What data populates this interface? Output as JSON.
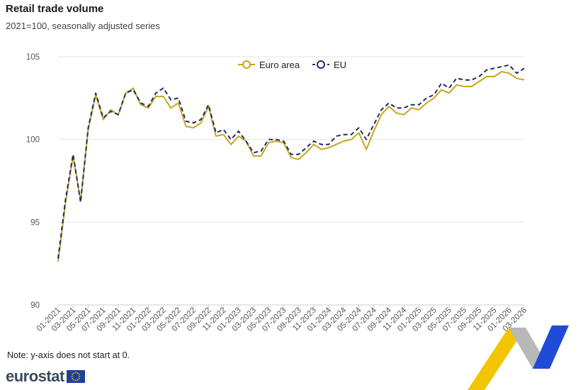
{
  "title": "Retail trade volume",
  "subtitle": "2021=100, seasonally adjusted series",
  "note": "Note: y-axis does not start at 0.",
  "logo_text": "eurostat",
  "colors": {
    "euro_area": "#c8a51e",
    "eu": "#1b2f6b",
    "grid": "#e6e6e6",
    "ribbon_yellow": "#f2c500",
    "ribbon_blue": "#1f4bd8",
    "ribbon_grey": "#b8b8b8"
  },
  "chart_data": {
    "type": "line",
    "ylim": [
      90,
      105
    ],
    "yticks": [
      90,
      95,
      100,
      105
    ],
    "grid": true,
    "legend_position": "top-center",
    "x": [
      "01-2021",
      "02-2021",
      "03-2021",
      "04-2021",
      "05-2021",
      "06-2021",
      "07-2021",
      "08-2021",
      "09-2021",
      "10-2021",
      "11-2021",
      "12-2021",
      "01-2022",
      "02-2022",
      "03-2022",
      "04-2022",
      "05-2022",
      "06-2022",
      "07-2022",
      "08-2022",
      "09-2022",
      "10-2022",
      "11-2022",
      "12-2022",
      "01-2023",
      "02-2023",
      "03-2023",
      "04-2023",
      "05-2023",
      "06-2023",
      "07-2023",
      "08-2023",
      "09-2023",
      "10-2023",
      "11-2023",
      "12-2023",
      "01-2024",
      "02-2024",
      "03-2024",
      "04-2024",
      "05-2024",
      "06-2024",
      "07-2024",
      "08-2024",
      "09-2024",
      "10-2024",
      "11-2024",
      "12-2024",
      "01-2025",
      "02-2025",
      "03-2025",
      "04-2025",
      "05-2025",
      "06-2025",
      "07-2025",
      "08-2025",
      "09-2025",
      "10-2025",
      "11-2025",
      "12-2025",
      "01-2026",
      "02-2026",
      "03-2026"
    ],
    "xtick_labels": [
      "01-2021",
      "03-2021",
      "05-2021",
      "07-2021",
      "09-2021",
      "11-2021",
      "01-2022",
      "03-2022",
      "05-2022",
      "07-2022",
      "09-2022",
      "11-2022",
      "01-2023",
      "03-2023",
      "05-2023",
      "07-2023",
      "09-2023",
      "11-2023",
      "01-2024",
      "03-2024",
      "05-2024",
      "07-2024",
      "09-2024",
      "11-2024",
      "01-2025",
      "03-2025",
      "05-2025",
      "07-2025",
      "09-2025",
      "11-2025",
      "01-2026",
      "03-2026"
    ],
    "series": [
      {
        "name": "Euro area",
        "values": [
          92.6,
          96.2,
          99.0,
          96.3,
          100.6,
          102.7,
          101.2,
          101.8,
          101.5,
          102.8,
          103.1,
          102.1,
          101.9,
          102.6,
          102.6,
          101.9,
          102.2,
          100.8,
          100.7,
          101.0,
          102.0,
          100.2,
          100.3,
          99.7,
          100.2,
          99.9,
          99.0,
          99.0,
          99.8,
          99.9,
          99.8,
          98.9,
          98.8,
          99.2,
          99.7,
          99.4,
          99.5,
          99.7,
          99.9,
          100.0,
          100.4,
          99.4,
          100.5,
          101.5,
          102.0,
          101.6,
          101.5,
          101.9,
          101.8,
          102.2,
          102.5,
          103.0,
          102.8,
          103.3,
          103.2,
          103.2,
          103.5,
          103.8,
          103.8,
          104.1,
          104.0,
          103.7,
          103.6
        ]
      },
      {
        "name": "EU",
        "values": [
          92.8,
          96.4,
          99.1,
          96.2,
          100.7,
          102.8,
          101.3,
          101.7,
          101.5,
          102.8,
          103.0,
          102.2,
          102.0,
          102.8,
          103.1,
          102.4,
          102.5,
          101.1,
          101.0,
          101.2,
          102.1,
          100.4,
          100.6,
          100.0,
          100.5,
          99.9,
          99.2,
          99.3,
          100.0,
          100.0,
          99.9,
          99.1,
          99.1,
          99.5,
          99.9,
          99.7,
          99.7,
          100.2,
          100.3,
          100.3,
          100.7,
          100.0,
          100.9,
          101.8,
          102.2,
          101.9,
          101.9,
          102.1,
          102.1,
          102.5,
          102.7,
          103.4,
          103.1,
          103.7,
          103.6,
          103.6,
          103.8,
          104.2,
          104.3,
          104.4,
          104.5,
          104.0,
          104.3
        ]
      }
    ]
  }
}
